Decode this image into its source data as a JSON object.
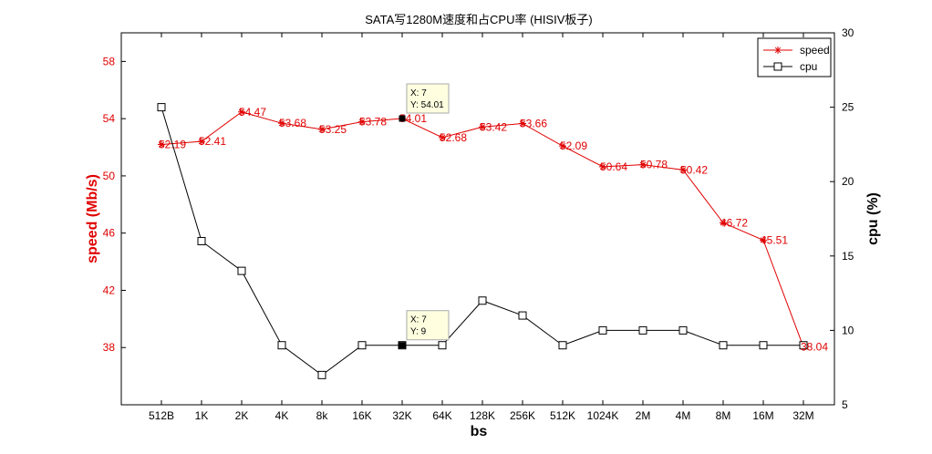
{
  "chart_data": {
    "type": "line",
    "title": "SATA写1280M速度和占CPU率 (HISIV板子)",
    "xlabel": "bs",
    "ylabel_left": "speed (Mb/s)",
    "ylabel_right": "cpu (%)",
    "categories": [
      "512B",
      "1K",
      "2K",
      "4K",
      "8k",
      "16K",
      "32K",
      "64K",
      "128K",
      "256K",
      "512K",
      "1024K",
      "2M",
      "4M",
      "8M",
      "16M",
      "32M"
    ],
    "y_left": {
      "range": [
        34,
        60
      ],
      "ticks": [
        38,
        42,
        46,
        50,
        54,
        58
      ]
    },
    "y_right": {
      "range": [
        5,
        30
      ],
      "ticks": [
        5,
        10,
        15,
        20,
        25,
        30
      ]
    },
    "series": [
      {
        "name": "speed",
        "axis": "left",
        "color": "#e00000",
        "marker": "asterisk",
        "values": [
          52.19,
          52.41,
          54.47,
          53.68,
          53.25,
          53.78,
          54.01,
          52.68,
          53.42,
          53.66,
          52.09,
          50.64,
          50.78,
          50.42,
          46.72,
          45.51,
          38.04
        ],
        "data_labels": [
          "52.19",
          "52.41",
          "54.47",
          "53.68",
          "53.25",
          "53.78",
          "54.01",
          "52.68",
          "53.42",
          "53.66",
          "52.09",
          "50.64",
          "50.78",
          "50.42",
          "46.72",
          "45.51",
          "38.04"
        ]
      },
      {
        "name": "cpu",
        "axis": "right",
        "color": "#000000",
        "marker": "square",
        "values": [
          25,
          16,
          14,
          9,
          7,
          9,
          9,
          9,
          12,
          11,
          9,
          10,
          10,
          10,
          9,
          9,
          9
        ]
      }
    ],
    "datatips": [
      {
        "series": 0,
        "index": 6,
        "x_text": "X: 7",
        "y_text": "Y: 54.01"
      },
      {
        "series": 1,
        "index": 6,
        "x_text": "X: 7",
        "y_text": "Y: 9"
      }
    ],
    "legend": {
      "placement": "top-right"
    },
    "grid": false
  }
}
